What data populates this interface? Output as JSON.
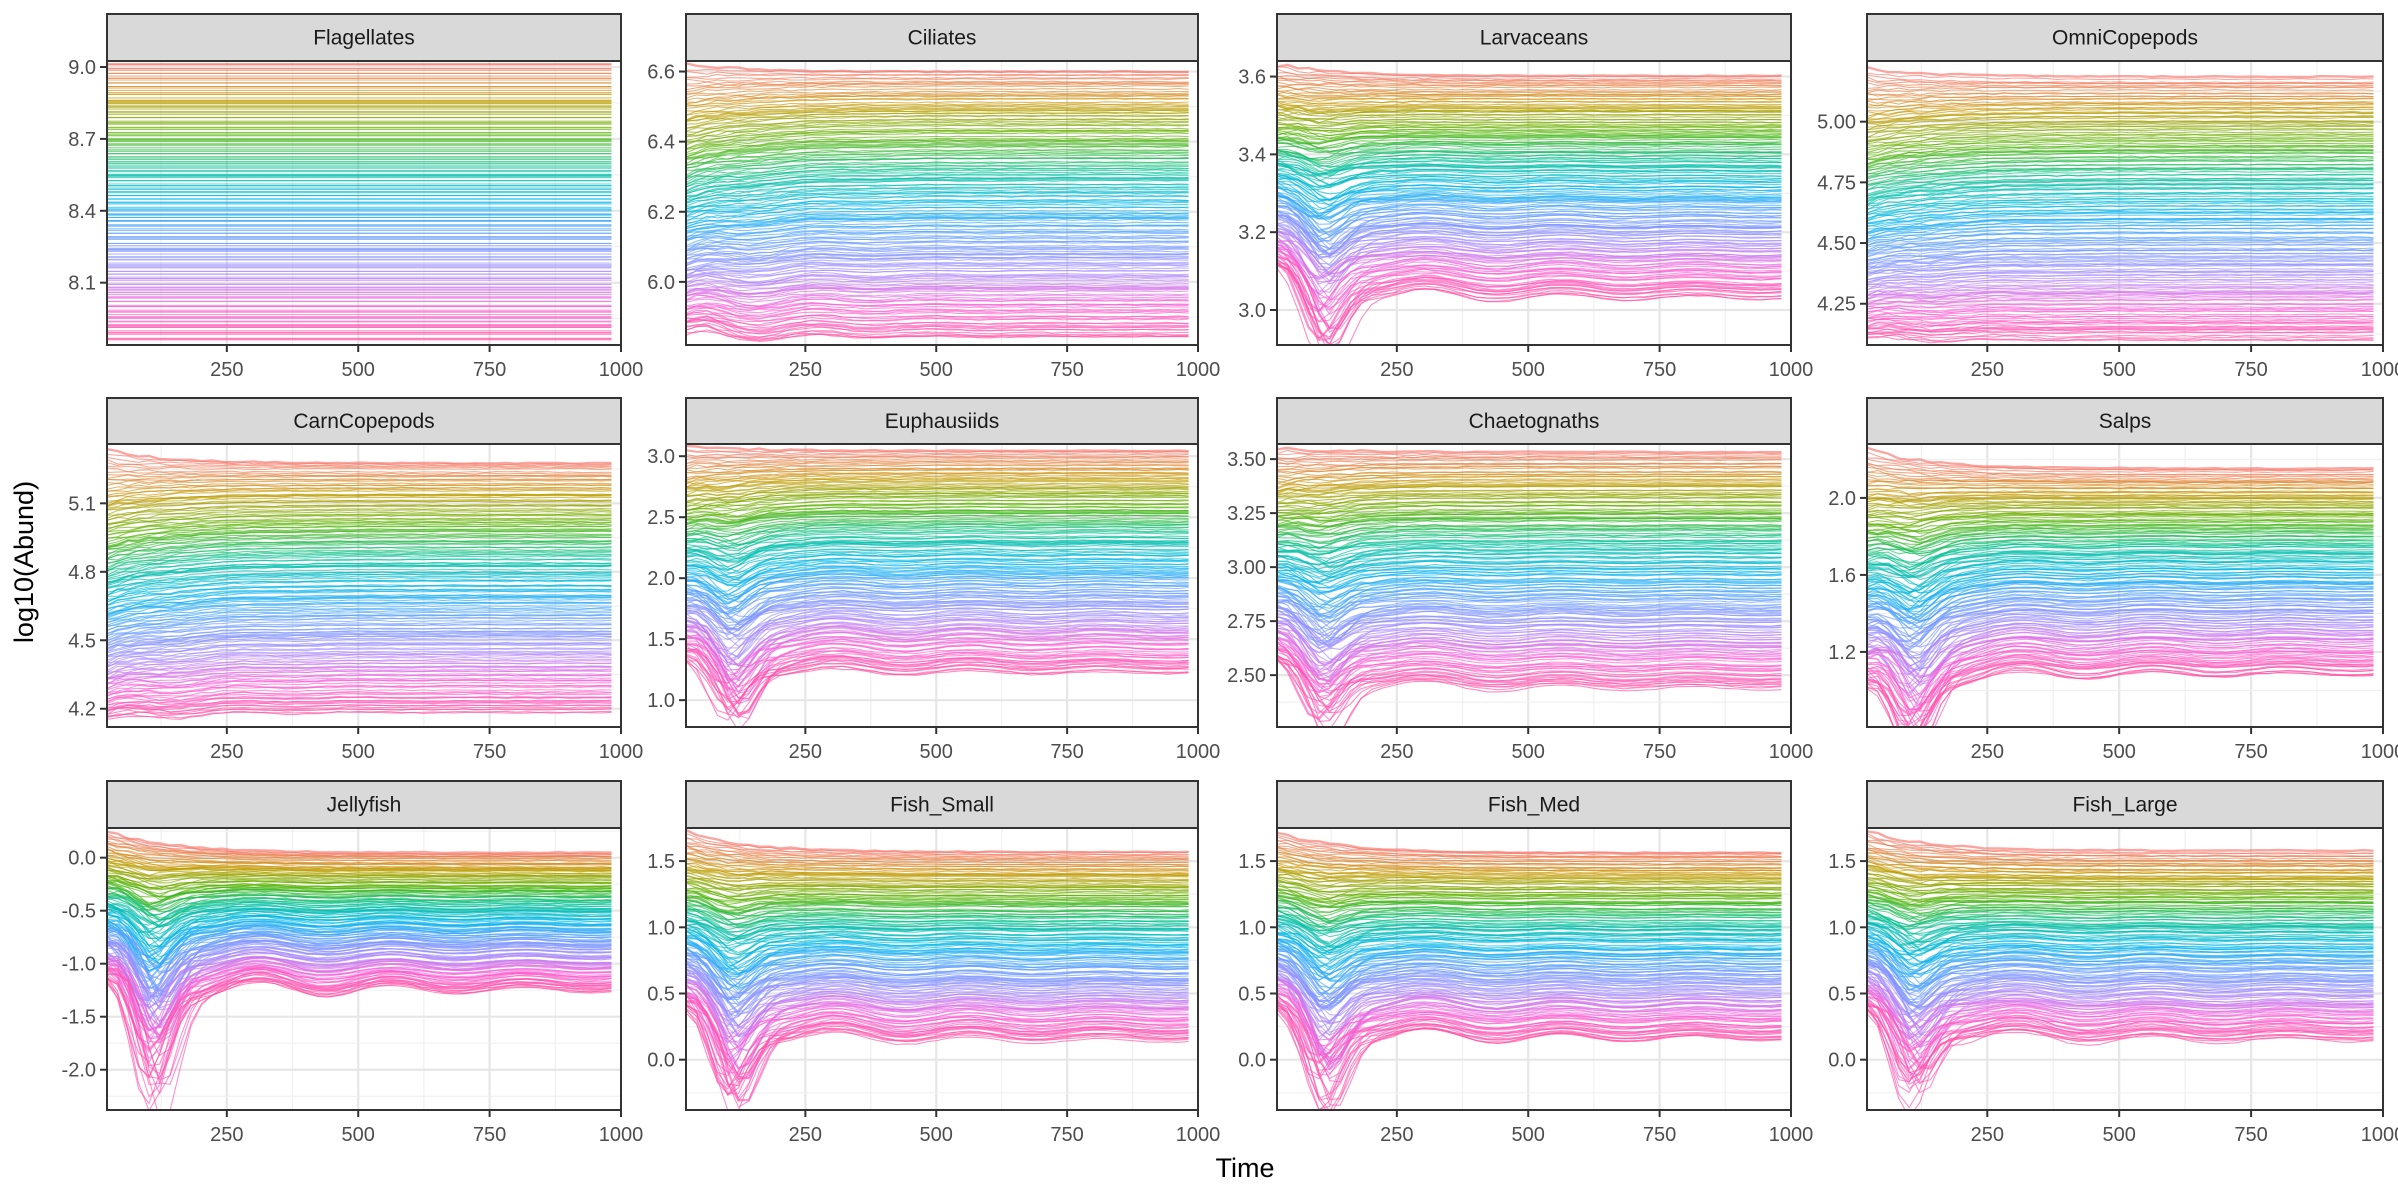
{
  "chart_data": {
    "type": "line",
    "layout": "facet-wrap 3x4",
    "xlabel": "Time",
    "ylabel": "log10(Abund)",
    "xlim": [
      22,
      1000
    ],
    "x_ticks": [
      250,
      500,
      750,
      1000
    ],
    "grid": true,
    "legend": "none",
    "series_note": "Hundreds of simulation runs per panel, colored by a hue gradient (orange → green → teal → blue → purple → pink)",
    "palette": [
      "#f8766d",
      "#c49a00",
      "#53b400",
      "#00c094",
      "#00b6eb",
      "#619cff",
      "#a58aff",
      "#fb61d7",
      "#ff4fa0"
    ],
    "panels": [
      {
        "name": "Flagellates",
        "ylim": [
          7.84,
          9.025
        ],
        "y_ticks": [
          8.1,
          8.4,
          8.7,
          9.0
        ],
        "tick_labels": [
          "8.1",
          "8.4",
          "8.7",
          "9.0"
        ],
        "shape": "flat",
        "start_range": [
          7.86,
          9.01
        ],
        "end_range": [
          7.86,
          9.01
        ],
        "dip": 0
      },
      {
        "name": "Ciliates",
        "ylim": [
          5.82,
          6.63
        ],
        "y_ticks": [
          6.0,
          6.2,
          6.4,
          6.6
        ],
        "tick_labels": [
          "6.0",
          "6.2",
          "6.4",
          "6.6"
        ],
        "shape": "damped",
        "start_range": [
          5.84,
          6.62
        ],
        "end_range": [
          5.84,
          6.6
        ],
        "dip": 0.08
      },
      {
        "name": "Larvaceans",
        "ylim": [
          2.91,
          3.64
        ],
        "y_ticks": [
          3.0,
          3.2,
          3.4,
          3.6
        ],
        "tick_labels": [
          "3.0",
          "3.2",
          "3.4",
          "3.6"
        ],
        "shape": "dip",
        "start_range": [
          3.1,
          3.63
        ],
        "end_range": [
          3.03,
          3.6
        ],
        "dip": 0.2
      },
      {
        "name": "OmniCopepods",
        "ylim": [
          4.08,
          5.25
        ],
        "y_ticks": [
          4.25,
          4.5,
          4.75,
          5.0
        ],
        "tick_labels": [
          "4.25",
          "4.50",
          "4.75",
          "5.00"
        ],
        "shape": "damped",
        "start_range": [
          4.1,
          5.22
        ],
        "end_range": [
          4.1,
          5.18
        ],
        "dip": 0.04
      },
      {
        "name": "CarnCopepods",
        "ylim": [
          4.12,
          5.36
        ],
        "y_ticks": [
          4.2,
          4.5,
          4.8,
          5.1
        ],
        "tick_labels": [
          "4.2",
          "4.5",
          "4.8",
          "5.1"
        ],
        "shape": "damped",
        "start_range": [
          4.14,
          5.33
        ],
        "end_range": [
          4.18,
          5.28
        ],
        "dip": 0.06
      },
      {
        "name": "Euphausiids",
        "ylim": [
          0.78,
          3.1
        ],
        "y_ticks": [
          1.0,
          1.5,
          2.0,
          2.5,
          3.0
        ],
        "tick_labels": [
          "1.0",
          "1.5",
          "2.0",
          "2.5",
          "3.0"
        ],
        "shape": "dip",
        "start_range": [
          1.3,
          3.08
        ],
        "end_range": [
          1.22,
          3.04
        ],
        "dip": 0.6
      },
      {
        "name": "Chaetognaths",
        "ylim": [
          2.26,
          3.57
        ],
        "y_ticks": [
          2.5,
          2.75,
          3.0,
          3.25,
          3.5
        ],
        "tick_labels": [
          "2.50",
          "2.75",
          "3.00",
          "3.25",
          "3.50"
        ],
        "shape": "dip",
        "start_range": [
          2.55,
          3.55
        ],
        "end_range": [
          2.44,
          3.53
        ],
        "dip": 0.3
      },
      {
        "name": "Salps",
        "ylim": [
          0.81,
          2.28
        ],
        "y_ticks": [
          1.2,
          1.6,
          2.0
        ],
        "tick_labels": [
          "1.2",
          "1.6",
          "2.0"
        ],
        "shape": "dip",
        "start_range": [
          1.0,
          2.25
        ],
        "end_range": [
          1.08,
          2.15
        ],
        "dip": 0.45
      },
      {
        "name": "Jellyfish",
        "ylim": [
          -2.38,
          0.28
        ],
        "y_ticks": [
          -2.0,
          -1.5,
          -1.0,
          -0.5,
          0.0
        ],
        "tick_labels": [
          "-2.0",
          "-1.5",
          "-1.0",
          "-0.5",
          "0.0"
        ],
        "shape": "dip",
        "start_range": [
          -1.2,
          0.25
        ],
        "end_range": [
          -1.25,
          0.05
        ],
        "dip": 1.3
      },
      {
        "name": "Fish_Small",
        "ylim": [
          -0.38,
          1.75
        ],
        "y_ticks": [
          0.0,
          0.5,
          1.0,
          1.5
        ],
        "tick_labels": [
          "0.0",
          "0.5",
          "1.0",
          "1.5"
        ],
        "shape": "dip",
        "start_range": [
          0.35,
          1.72
        ],
        "end_range": [
          0.15,
          1.57
        ],
        "dip": 0.7
      },
      {
        "name": "Fish_Med",
        "ylim": [
          -0.38,
          1.75
        ],
        "y_ticks": [
          0.0,
          0.5,
          1.0,
          1.5
        ],
        "tick_labels": [
          "0.0",
          "0.5",
          "1.0",
          "1.5"
        ],
        "shape": "dip",
        "start_range": [
          0.35,
          1.72
        ],
        "end_range": [
          0.15,
          1.57
        ],
        "dip": 0.7
      },
      {
        "name": "Fish_Large",
        "ylim": [
          -0.38,
          1.75
        ],
        "y_ticks": [
          0.0,
          0.5,
          1.0,
          1.5
        ],
        "tick_labels": [
          "0.0",
          "0.5",
          "1.0",
          "1.5"
        ],
        "shape": "dip",
        "start_range": [
          0.35,
          1.72
        ],
        "end_range": [
          0.15,
          1.57
        ],
        "dip": 0.7
      }
    ]
  }
}
